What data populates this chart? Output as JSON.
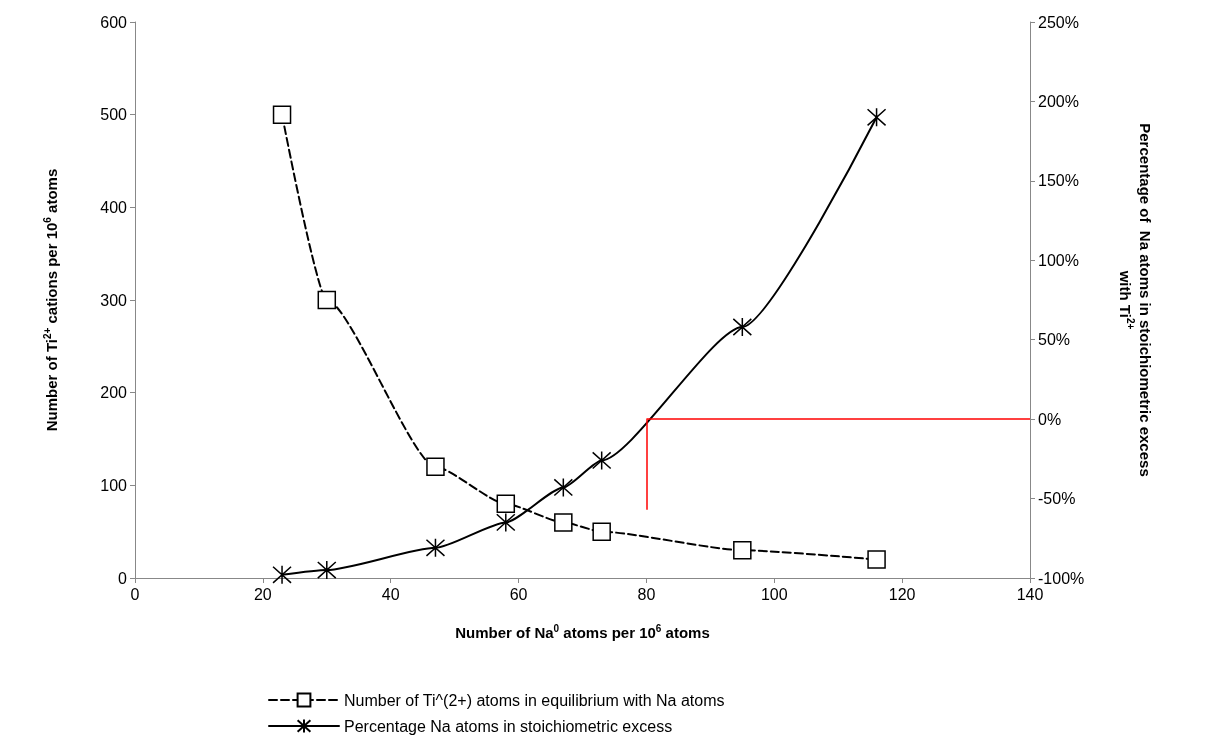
{
  "chart_data": {
    "type": "line",
    "xlabel": "Number of Na$^{0}$ atoms per 10$^{6}$ atoms",
    "ylabel": "Number of Ti$^{2+}$ cations per 10$^{6}$ atoms",
    "y2label": "Percentage of  Na atoms in stoichiometric excess\nwith Ti$^{2+}$",
    "series": [
      {
        "name": "Number of Ti^(2+) atoms in equilibrium with Na atoms",
        "color": "#000000",
        "marker": "square",
        "line_style": "dashed",
        "x": [
          23,
          30,
          47,
          58,
          67,
          73,
          95,
          116
        ],
        "values": [
          500,
          300,
          120,
          80,
          60,
          50,
          30,
          20
        ]
      },
      {
        "name": "Percentage Na atoms in stoichiometric excess",
        "color": "#000000",
        "marker": "cross",
        "line_style": "solid",
        "axis": "y2",
        "x": [
          23,
          30,
          47,
          58,
          67,
          73,
          95,
          116
        ],
        "values": [
          -98,
          -95,
          -81,
          -65,
          -43,
          -26,
          58,
          190
        ]
      }
    ],
    "xlim": [
      0,
      140
    ],
    "xticks": [
      0,
      20,
      40,
      60,
      80,
      100,
      120,
      140
    ],
    "ylim": [
      0,
      600
    ],
    "yticks": [
      0,
      100,
      200,
      300,
      400,
      500,
      600
    ],
    "y2lim": [
      -100,
      250
    ],
    "y2ticks": [
      {
        "value": -100,
        "label": "-100%"
      },
      {
        "value": -50,
        "label": "-50%"
      },
      {
        "value": 0,
        "label": "0%"
      },
      {
        "value": 50,
        "label": "50%"
      },
      {
        "value": 100,
        "label": "100%"
      },
      {
        "value": 150,
        "label": "150%"
      },
      {
        "value": 200,
        "label": "200%"
      },
      {
        "value": 250,
        "label": "250%"
      }
    ],
    "ref_lines": [
      {
        "axis": "y2",
        "value": 0,
        "color": "#ff0000"
      },
      {
        "axis": "x",
        "value": 80,
        "color": "#ff0000"
      }
    ],
    "grid": false,
    "legend": "bottom"
  }
}
